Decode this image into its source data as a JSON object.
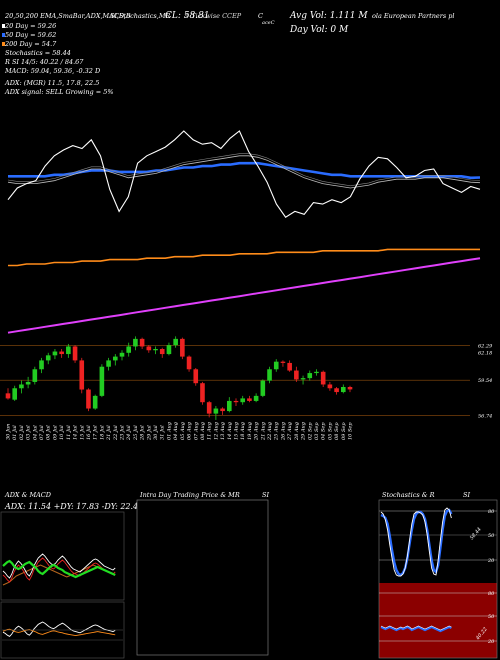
{
  "header": {
    "row1_left": "20,50,200 EMA,SmaBar,ADX,MACD,B",
    "row1_mid": "SI,Stochastics,MR",
    "row1_close": "CL: 58.81",
    "row1_date": "9 Tickwise CCEP",
    "row1_c": "C",
    "row1_company": "ola European Partners pl",
    "row1_sub": "aceC",
    "avg_vol": "Avg Vol: 1.111 M",
    "day_vol": "Day Vol: 0   M",
    "legend": [
      {
        "name": "ema20",
        "label": "20   Day = 59.26",
        "color": "#ffffff"
      },
      {
        "name": "ema50",
        "label": "50   Day = 59.62",
        "color": "#2a6cff"
      },
      {
        "name": "ema200",
        "label": "200  Day = 54.7",
        "color": "#ff8c1a"
      }
    ],
    "stats": [
      "Stochastics = 58.44",
      "R          SI 14/5: 40.22  /  84.67",
      "MACD: 59.04,  59.36,  -0.32  D"
    ],
    "adx_line": "ADX:                         (MGR) 11.5,  17.8,  22.5",
    "adx_signal": "ADX  signal: SELL Growing = 5%"
  },
  "price_labels": [
    "62.29",
    "62.18",
    "59.54",
    "56.74"
  ],
  "x_labels": [
    "30 Jun",
    "01 Jul",
    "02 Jul",
    "03 Jul",
    "04 Jul",
    "07 Jul",
    "08 Jul",
    "09 Jul",
    "10 Jul",
    "11 Jul",
    "14 Jul",
    "15 Jul",
    "16 Jul",
    "17 Jul",
    "18 Jul",
    "21 Jul",
    "22 Jul",
    "23 Jul",
    "24 Jul",
    "25 Jul",
    "28 Jul",
    "29 Jul",
    "30 Jul",
    "31 Jul",
    "01 Aug",
    "04 Aug",
    "05 Aug",
    "06 Aug",
    "07 Aug",
    "08 Aug",
    "11 Aug",
    "12 Aug",
    "13 Aug",
    "14 Aug",
    "15 Aug",
    "18 Aug",
    "19 Aug",
    "20 Aug",
    "21 Aug",
    "22 Aug",
    "25 Aug",
    "26 Aug",
    "27 Aug",
    "28 Aug",
    "29 Aug",
    "02 Sep",
    "03 Sep",
    "04 Sep",
    "05 Sep",
    "08 Sep",
    "09 Sep",
    "10 Sep"
  ],
  "panels": {
    "adx_title": "ADX  & MACD",
    "adx_values": "ADX: 11.54  +DY: 17.83 -DY: 22.48",
    "intra_title": "Intra  Day Trading Price  & MR",
    "intra_si": "SI",
    "stoch_title": "Stochastics & R",
    "stoch_si": "SI",
    "stoch_labels": [
      "80",
      "50",
      "20"
    ],
    "stoch_value": "58.44",
    "rsi_labels": [
      "80",
      "50",
      "20"
    ],
    "rsi_value": "40.22"
  },
  "chart_data": {
    "type": "candlestick",
    "categories": [
      "30 Jun",
      "01 Jul",
      "02 Jul",
      "03 Jul",
      "04 Jul",
      "07 Jul",
      "08 Jul",
      "09 Jul",
      "10 Jul",
      "11 Jul",
      "14 Jul",
      "15 Jul",
      "16 Jul",
      "17 Jul",
      "18 Jul",
      "21 Jul",
      "22 Jul",
      "23 Jul",
      "24 Jul",
      "25 Jul",
      "28 Jul",
      "29 Jul",
      "30 Jul",
      "31 Jul",
      "01 Aug",
      "04 Aug",
      "05 Aug",
      "06 Aug",
      "07 Aug",
      "08 Aug",
      "11 Aug",
      "12 Aug",
      "13 Aug",
      "14 Aug",
      "15 Aug",
      "18 Aug",
      "19 Aug",
      "20 Aug",
      "21 Aug",
      "22 Aug",
      "25 Aug",
      "26 Aug",
      "27 Aug",
      "28 Aug",
      "29 Aug",
      "02 Sep",
      "03 Sep",
      "04 Sep",
      "05 Sep",
      "08 Sep",
      "09 Sep",
      "10 Sep"
    ],
    "ohlc": [
      [
        58.5,
        58.9,
        58.0,
        58.1
      ],
      [
        58.0,
        59.1,
        57.9,
        58.9
      ],
      [
        58.9,
        59.5,
        58.5,
        59.2
      ],
      [
        59.2,
        59.8,
        58.9,
        59.4
      ],
      [
        59.4,
        60.6,
        59.2,
        60.4
      ],
      [
        60.4,
        61.3,
        60.1,
        61.1
      ],
      [
        61.1,
        61.7,
        60.8,
        61.5
      ],
      [
        61.5,
        62.0,
        61.2,
        61.8
      ],
      [
        61.8,
        62.0,
        61.3,
        61.6
      ],
      [
        61.6,
        62.4,
        61.3,
        62.2
      ],
      [
        62.2,
        62.3,
        60.9,
        61.1
      ],
      [
        61.1,
        61.3,
        58.5,
        58.8
      ],
      [
        58.8,
        58.9,
        57.1,
        57.3
      ],
      [
        57.3,
        58.4,
        57.2,
        58.3
      ],
      [
        58.3,
        60.8,
        58.2,
        60.6
      ],
      [
        60.6,
        61.3,
        60.3,
        61.1
      ],
      [
        61.1,
        61.6,
        60.7,
        61.4
      ],
      [
        61.4,
        61.9,
        61.1,
        61.7
      ],
      [
        61.7,
        62.5,
        61.4,
        62.2
      ],
      [
        62.2,
        63.0,
        61.9,
        62.8
      ],
      [
        62.8,
        62.9,
        62.0,
        62.2
      ],
      [
        62.2,
        62.3,
        61.7,
        61.9
      ],
      [
        61.9,
        62.2,
        61.6,
        62.0
      ],
      [
        62.0,
        62.1,
        61.3,
        61.6
      ],
      [
        61.6,
        62.5,
        61.5,
        62.3
      ],
      [
        62.3,
        63.0,
        62.1,
        62.8
      ],
      [
        62.8,
        62.9,
        61.2,
        61.4
      ],
      [
        61.4,
        61.5,
        60.2,
        60.4
      ],
      [
        60.4,
        60.5,
        59.1,
        59.3
      ],
      [
        59.3,
        59.4,
        57.6,
        57.8
      ],
      [
        57.8,
        57.9,
        56.6,
        56.9
      ],
      [
        56.9,
        57.5,
        56.4,
        57.3
      ],
      [
        57.3,
        57.4,
        56.8,
        57.1
      ],
      [
        57.1,
        58.2,
        57.0,
        57.9
      ],
      [
        57.9,
        58.1,
        57.5,
        57.8
      ],
      [
        57.8,
        58.3,
        57.6,
        58.1
      ],
      [
        58.1,
        58.3,
        57.8,
        57.9
      ],
      [
        57.9,
        58.5,
        57.8,
        58.3
      ],
      [
        58.3,
        59.6,
        58.2,
        59.5
      ],
      [
        59.5,
        60.6,
        59.3,
        60.4
      ],
      [
        60.4,
        61.2,
        60.2,
        61.0
      ],
      [
        61.0,
        61.1,
        60.6,
        60.9
      ],
      [
        60.9,
        61.1,
        60.2,
        60.3
      ],
      [
        60.3,
        60.6,
        59.4,
        59.6
      ],
      [
        59.6,
        59.9,
        59.2,
        59.7
      ],
      [
        59.7,
        60.3,
        59.5,
        60.1
      ],
      [
        60.1,
        60.4,
        59.9,
        60.2
      ],
      [
        60.2,
        60.3,
        59.0,
        59.2
      ],
      [
        59.2,
        59.4,
        58.7,
        58.9
      ],
      [
        58.9,
        59.0,
        58.4,
        58.6
      ],
      [
        58.6,
        59.2,
        58.5,
        59.0
      ],
      [
        59.0,
        59.1,
        58.6,
        58.81
      ]
    ],
    "ylim": [
      56.0,
      63.5
    ],
    "ema20": [
      59.3,
      59.2,
      59.2,
      59.2,
      59.3,
      59.4,
      59.6,
      59.8,
      60.0,
      60.2,
      60.2,
      60.0,
      59.8,
      59.6,
      59.7,
      59.8,
      59.9,
      60.1,
      60.3,
      60.5,
      60.6,
      60.7,
      60.8,
      60.9,
      61.0,
      61.1,
      61.1,
      61.0,
      60.8,
      60.5,
      60.2,
      59.9,
      59.6,
      59.4,
      59.2,
      59.1,
      59.0,
      58.9,
      59.0,
      59.1,
      59.3,
      59.4,
      59.5,
      59.5,
      59.5,
      59.6,
      59.6,
      59.6,
      59.5,
      59.4,
      59.3,
      59.26
    ],
    "ema50": [
      59.7,
      59.7,
      59.7,
      59.7,
      59.7,
      59.8,
      59.8,
      59.9,
      60.0,
      60.1,
      60.1,
      60.1,
      60.0,
      60.0,
      60.0,
      60.0,
      60.1,
      60.1,
      60.2,
      60.3,
      60.3,
      60.4,
      60.4,
      60.5,
      60.5,
      60.6,
      60.6,
      60.6,
      60.5,
      60.4,
      60.3,
      60.2,
      60.1,
      60.0,
      59.9,
      59.8,
      59.8,
      59.7,
      59.7,
      59.7,
      59.7,
      59.7,
      59.7,
      59.7,
      59.7,
      59.7,
      59.7,
      59.7,
      59.7,
      59.7,
      59.6,
      59.62
    ],
    "ema200": [
      53.6,
      53.6,
      53.7,
      53.7,
      53.7,
      53.8,
      53.8,
      53.8,
      53.9,
      53.9,
      53.9,
      54.0,
      54.0,
      54.0,
      54.0,
      54.1,
      54.1,
      54.1,
      54.2,
      54.2,
      54.2,
      54.3,
      54.3,
      54.3,
      54.3,
      54.4,
      54.4,
      54.4,
      54.4,
      54.5,
      54.5,
      54.5,
      54.5,
      54.5,
      54.6,
      54.6,
      54.6,
      54.6,
      54.6,
      54.6,
      54.6,
      54.7,
      54.7,
      54.7,
      54.7,
      54.7,
      54.7,
      54.7,
      54.7,
      54.7,
      54.7,
      54.7
    ],
    "sma_long": [
      49.0,
      49.1,
      49.2,
      49.3,
      49.4,
      49.5,
      49.6,
      49.7,
      49.8,
      49.9,
      50.0,
      50.1,
      50.2,
      50.3,
      50.4,
      50.5,
      50.6,
      50.7,
      50.8,
      50.9,
      51.0,
      51.1,
      51.2,
      51.3,
      51.4,
      51.5,
      51.6,
      51.7,
      51.8,
      51.9,
      52.0,
      52.1,
      52.2,
      52.3,
      52.4,
      52.5,
      52.6,
      52.7,
      52.8,
      52.9,
      53.0,
      53.1,
      53.2,
      53.3,
      53.4,
      53.5,
      53.6,
      53.7,
      53.8,
      53.9,
      54.0,
      54.1
    ]
  }
}
